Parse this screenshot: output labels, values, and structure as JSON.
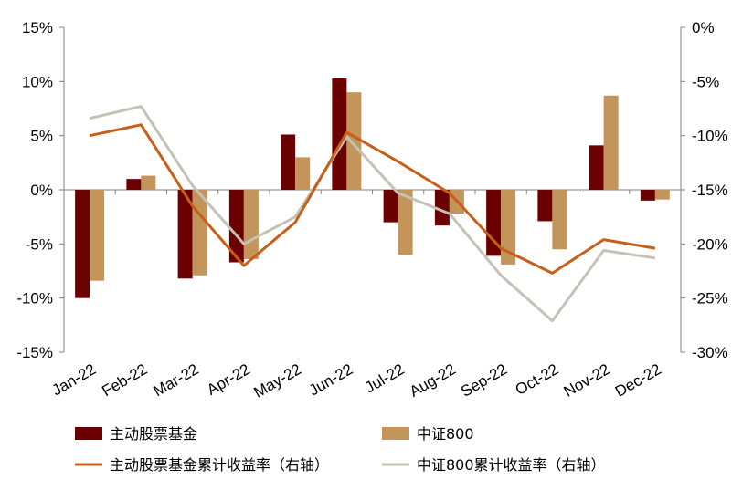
{
  "chart_data": {
    "type": "bar",
    "categories": [
      "Jan-22",
      "Feb-22",
      "Mar-22",
      "Apr-22",
      "May-22",
      "Jun-22",
      "Jul-22",
      "Aug-22",
      "Sep-22",
      "Oct-22",
      "Nov-22",
      "Dec-22"
    ],
    "series": [
      {
        "name": "主动股票基金",
        "kind": "bar",
        "axis": "left",
        "color": "#6b0000",
        "values": [
          -10.0,
          1.0,
          -8.2,
          -6.7,
          5.1,
          10.3,
          -3.0,
          -3.3,
          -6.1,
          -2.9,
          4.1,
          -1.0
        ]
      },
      {
        "name": "中证800",
        "kind": "bar",
        "axis": "left",
        "color": "#c4955a",
        "values": [
          -8.4,
          1.3,
          -7.9,
          -6.4,
          3.0,
          9.0,
          -6.0,
          -2.2,
          -6.9,
          -5.5,
          8.7,
          -0.9
        ]
      },
      {
        "name": "主动股票基金累计收益率（右轴）",
        "kind": "line",
        "axis": "right",
        "color": "#c75f1a",
        "values": [
          -10.0,
          -9.0,
          -16.5,
          -22.0,
          -18.0,
          -9.7,
          -12.4,
          -15.3,
          -20.4,
          -22.7,
          -19.6,
          -20.4
        ]
      },
      {
        "name": "中证800累计收益率（右轴）",
        "kind": "line",
        "axis": "right",
        "color": "#c4c2b6",
        "values": [
          -8.4,
          -7.3,
          -14.6,
          -20.0,
          -17.5,
          -10.1,
          -15.3,
          -17.2,
          -22.9,
          -27.1,
          -20.6,
          -21.3
        ]
      }
    ],
    "ylim_left": [
      -15,
      15
    ],
    "ylim_right": [
      -30,
      0
    ],
    "left_ticks": [
      "15%",
      "10%",
      "5%",
      "0%",
      "-5%",
      "-10%",
      "-15%"
    ],
    "left_tick_values": [
      15,
      10,
      5,
      0,
      -5,
      -10,
      -15
    ],
    "right_ticks": [
      "0%",
      "-5%",
      "-10%",
      "-15%",
      "-20%",
      "-25%",
      "-30%"
    ],
    "right_tick_values": [
      0,
      -5,
      -10,
      -15,
      -20,
      -25,
      -30
    ],
    "grid": false,
    "legend_position": "bottom"
  }
}
